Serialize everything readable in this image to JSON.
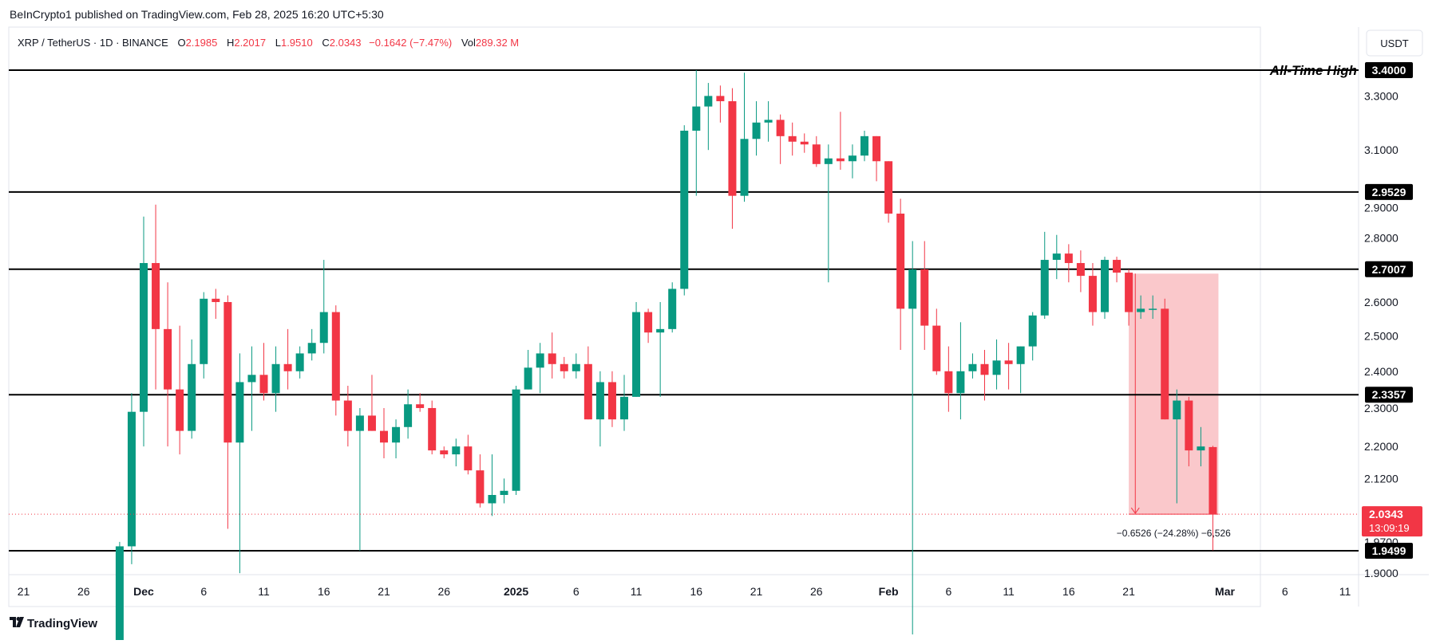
{
  "publisher": "BeInCrypto1 published on TradingView.com, Feb 28, 2025 16:20 UTC+5:30",
  "legend": {
    "symbol": "XRP / TetherUS · 1D · BINANCE",
    "open_label": "O",
    "open": "2.1985",
    "high_label": "H",
    "high": "2.2017",
    "low_label": "L",
    "low": "1.9510",
    "close_label": "C",
    "close": "2.0343",
    "change": "−0.1642 (−7.47%)",
    "vol_label": "Vol",
    "vol": "289.32 M"
  },
  "currency_button": "USDT",
  "ath_label": "All-Time High",
  "measure_label": "−0.6526 (−24.28%) −6,526",
  "price_tag": {
    "price": "2.0343",
    "countdown": "13:09:19"
  },
  "brand": "TradingView",
  "colors": {
    "up": "#089981",
    "down": "#f23645",
    "line": "#000000",
    "measure_fill": "#f7a3a9"
  },
  "chart_data": {
    "type": "candlestick",
    "y_ticks": [
      "1.9000",
      "1.9700",
      "2.0343",
      "2.1200",
      "2.2000",
      "2.3000",
      "2.4000",
      "2.5000",
      "2.6000",
      "2.8000",
      "2.9000",
      "3.1000",
      "3.3000"
    ],
    "x_ticks": [
      {
        "label": "21",
        "date": "2024-11-21"
      },
      {
        "label": "26",
        "date": "2024-11-26"
      },
      {
        "label": "Dec",
        "date": "2024-12-01",
        "bold": true
      },
      {
        "label": "6",
        "date": "2024-12-06"
      },
      {
        "label": "11",
        "date": "2024-12-11"
      },
      {
        "label": "16",
        "date": "2024-12-16"
      },
      {
        "label": "21",
        "date": "2024-12-21"
      },
      {
        "label": "26",
        "date": "2024-12-26"
      },
      {
        "label": "2025",
        "date": "2025-01-01",
        "bold": true
      },
      {
        "label": "6",
        "date": "2025-01-06"
      },
      {
        "label": "11",
        "date": "2025-01-11"
      },
      {
        "label": "16",
        "date": "2025-01-16"
      },
      {
        "label": "21",
        "date": "2025-01-21"
      },
      {
        "label": "26",
        "date": "2025-01-26"
      },
      {
        "label": "Feb",
        "date": "2025-02-01",
        "bold": true
      },
      {
        "label": "6",
        "date": "2025-02-06"
      },
      {
        "label": "11",
        "date": "2025-02-11"
      },
      {
        "label": "16",
        "date": "2025-02-16"
      },
      {
        "label": "21",
        "date": "2025-02-21"
      },
      {
        "label": "Mar",
        "date": "2025-03-01",
        "bold": true
      },
      {
        "label": "6",
        "date": "2025-03-06"
      },
      {
        "label": "11",
        "date": "2025-03-11"
      }
    ],
    "horizontal_levels": [
      {
        "value": 3.4,
        "label": "3.4000"
      },
      {
        "value": 2.9529,
        "label": "2.9529"
      },
      {
        "value": 2.7007,
        "label": "2.7007"
      },
      {
        "value": 2.3357,
        "label": "2.3357"
      },
      {
        "value": 1.9499,
        "label": "1.9499"
      }
    ],
    "measure": {
      "from_date": "2025-02-21",
      "to_date": "2025-02-28",
      "top": 2.6869,
      "bottom": 2.0343
    },
    "candles": [
      {
        "d": "2024-11-29",
        "o": 1.75,
        "h": 1.97,
        "l": 1.72,
        "c": 1.96
      },
      {
        "d": "2024-11-30",
        "o": 1.96,
        "h": 2.34,
        "l": 1.92,
        "c": 2.29
      },
      {
        "d": "2024-12-01",
        "o": 2.29,
        "h": 2.87,
        "l": 2.2,
        "c": 2.72
      },
      {
        "d": "2024-12-02",
        "o": 2.72,
        "h": 2.91,
        "l": 2.35,
        "c": 2.52
      },
      {
        "d": "2024-12-03",
        "o": 2.52,
        "h": 2.66,
        "l": 2.2,
        "c": 2.35
      },
      {
        "d": "2024-12-04",
        "o": 2.35,
        "h": 2.53,
        "l": 2.18,
        "c": 2.24
      },
      {
        "d": "2024-12-05",
        "o": 2.24,
        "h": 2.49,
        "l": 2.22,
        "c": 2.42
      },
      {
        "d": "2024-12-06",
        "o": 2.42,
        "h": 2.63,
        "l": 2.38,
        "c": 2.61
      },
      {
        "d": "2024-12-07",
        "o": 2.61,
        "h": 2.64,
        "l": 2.55,
        "c": 2.6
      },
      {
        "d": "2024-12-08",
        "o": 2.6,
        "h": 2.62,
        "l": 2.0,
        "c": 2.21
      },
      {
        "d": "2024-12-09",
        "o": 2.21,
        "h": 2.45,
        "l": 1.9,
        "c": 2.37
      },
      {
        "d": "2024-12-10",
        "o": 2.37,
        "h": 2.47,
        "l": 2.24,
        "c": 2.39
      },
      {
        "d": "2024-12-11",
        "o": 2.39,
        "h": 2.48,
        "l": 2.32,
        "c": 2.34
      },
      {
        "d": "2024-12-12",
        "o": 2.34,
        "h": 2.47,
        "l": 2.29,
        "c": 2.42
      },
      {
        "d": "2024-12-13",
        "o": 2.42,
        "h": 2.52,
        "l": 2.35,
        "c": 2.4
      },
      {
        "d": "2024-12-14",
        "o": 2.4,
        "h": 2.47,
        "l": 2.38,
        "c": 2.45
      },
      {
        "d": "2024-12-15",
        "o": 2.45,
        "h": 2.52,
        "l": 2.43,
        "c": 2.48
      },
      {
        "d": "2024-12-16",
        "o": 2.48,
        "h": 2.73,
        "l": 2.45,
        "c": 2.57
      },
      {
        "d": "2024-12-17",
        "o": 2.57,
        "h": 2.59,
        "l": 2.28,
        "c": 2.32
      },
      {
        "d": "2024-12-18",
        "o": 2.32,
        "h": 2.36,
        "l": 2.2,
        "c": 2.24
      },
      {
        "d": "2024-12-19",
        "o": 2.24,
        "h": 2.3,
        "l": 1.95,
        "c": 2.28
      },
      {
        "d": "2024-12-20",
        "o": 2.28,
        "h": 2.39,
        "l": 2.24,
        "c": 2.24
      },
      {
        "d": "2024-12-21",
        "o": 2.24,
        "h": 2.3,
        "l": 2.17,
        "c": 2.21
      },
      {
        "d": "2024-12-22",
        "o": 2.21,
        "h": 2.27,
        "l": 2.17,
        "c": 2.25
      },
      {
        "d": "2024-12-23",
        "o": 2.25,
        "h": 2.35,
        "l": 2.22,
        "c": 2.31
      },
      {
        "d": "2024-12-24",
        "o": 2.31,
        "h": 2.34,
        "l": 2.29,
        "c": 2.3
      },
      {
        "d": "2024-12-25",
        "o": 2.3,
        "h": 2.32,
        "l": 2.18,
        "c": 2.19
      },
      {
        "d": "2024-12-26",
        "o": 2.19,
        "h": 2.2,
        "l": 2.17,
        "c": 2.18
      },
      {
        "d": "2024-12-27",
        "o": 2.18,
        "h": 2.22,
        "l": 2.15,
        "c": 2.2
      },
      {
        "d": "2024-12-28",
        "o": 2.2,
        "h": 2.23,
        "l": 2.13,
        "c": 2.14
      },
      {
        "d": "2024-12-29",
        "o": 2.14,
        "h": 2.18,
        "l": 2.05,
        "c": 2.06
      },
      {
        "d": "2024-12-30",
        "o": 2.06,
        "h": 2.18,
        "l": 2.03,
        "c": 2.08
      },
      {
        "d": "2024-12-31",
        "o": 2.08,
        "h": 2.12,
        "l": 2.06,
        "c": 2.09
      },
      {
        "d": "2025-01-01",
        "o": 2.09,
        "h": 2.36,
        "l": 2.08,
        "c": 2.35
      },
      {
        "d": "2025-01-02",
        "o": 2.35,
        "h": 2.46,
        "l": 2.35,
        "c": 2.41
      },
      {
        "d": "2025-01-03",
        "o": 2.41,
        "h": 2.48,
        "l": 2.34,
        "c": 2.45
      },
      {
        "d": "2025-01-04",
        "o": 2.45,
        "h": 2.51,
        "l": 2.38,
        "c": 2.42
      },
      {
        "d": "2025-01-05",
        "o": 2.42,
        "h": 2.44,
        "l": 2.38,
        "c": 2.4
      },
      {
        "d": "2025-01-06",
        "o": 2.4,
        "h": 2.45,
        "l": 2.38,
        "c": 2.42
      },
      {
        "d": "2025-01-07",
        "o": 2.42,
        "h": 2.47,
        "l": 2.27,
        "c": 2.27
      },
      {
        "d": "2025-01-08",
        "o": 2.27,
        "h": 2.4,
        "l": 2.2,
        "c": 2.37
      },
      {
        "d": "2025-01-09",
        "o": 2.37,
        "h": 2.4,
        "l": 2.25,
        "c": 2.27
      },
      {
        "d": "2025-01-10",
        "o": 2.27,
        "h": 2.39,
        "l": 2.24,
        "c": 2.33
      },
      {
        "d": "2025-01-11",
        "o": 2.33,
        "h": 2.6,
        "l": 2.33,
        "c": 2.57
      },
      {
        "d": "2025-01-12",
        "o": 2.57,
        "h": 2.58,
        "l": 2.48,
        "c": 2.51
      },
      {
        "d": "2025-01-13",
        "o": 2.51,
        "h": 2.6,
        "l": 2.33,
        "c": 2.52
      },
      {
        "d": "2025-01-14",
        "o": 2.52,
        "h": 2.66,
        "l": 2.51,
        "c": 2.64
      },
      {
        "d": "2025-01-15",
        "o": 2.64,
        "h": 3.19,
        "l": 2.62,
        "c": 3.17
      },
      {
        "d": "2025-01-16",
        "o": 3.17,
        "h": 3.4,
        "l": 2.94,
        "c": 3.26
      },
      {
        "d": "2025-01-17",
        "o": 3.26,
        "h": 3.35,
        "l": 3.1,
        "c": 3.3
      },
      {
        "d": "2025-01-18",
        "o": 3.3,
        "h": 3.34,
        "l": 3.2,
        "c": 3.28
      },
      {
        "d": "2025-01-19",
        "o": 3.28,
        "h": 3.33,
        "l": 2.83,
        "c": 2.94
      },
      {
        "d": "2025-01-20",
        "o": 2.94,
        "h": 3.39,
        "l": 2.92,
        "c": 3.14
      },
      {
        "d": "2025-01-21",
        "o": 3.14,
        "h": 3.28,
        "l": 3.08,
        "c": 3.2
      },
      {
        "d": "2025-01-22",
        "o": 3.2,
        "h": 3.28,
        "l": 3.13,
        "c": 3.21
      },
      {
        "d": "2025-01-23",
        "o": 3.21,
        "h": 3.23,
        "l": 3.05,
        "c": 3.15
      },
      {
        "d": "2025-01-24",
        "o": 3.15,
        "h": 3.2,
        "l": 3.08,
        "c": 3.13
      },
      {
        "d": "2025-01-25",
        "o": 3.13,
        "h": 3.16,
        "l": 3.09,
        "c": 3.12
      },
      {
        "d": "2025-01-26",
        "o": 3.12,
        "h": 3.15,
        "l": 3.04,
        "c": 3.05
      },
      {
        "d": "2025-01-27",
        "o": 3.05,
        "h": 3.12,
        "l": 2.66,
        "c": 3.07
      },
      {
        "d": "2025-01-28",
        "o": 3.07,
        "h": 3.24,
        "l": 3.03,
        "c": 3.06
      },
      {
        "d": "2025-01-29",
        "o": 3.06,
        "h": 3.12,
        "l": 3.0,
        "c": 3.08
      },
      {
        "d": "2025-01-30",
        "o": 3.08,
        "h": 3.17,
        "l": 3.06,
        "c": 3.15
      },
      {
        "d": "2025-01-31",
        "o": 3.15,
        "h": 3.15,
        "l": 2.99,
        "c": 3.06
      },
      {
        "d": "2025-02-01",
        "o": 3.06,
        "h": 3.06,
        "l": 2.85,
        "c": 2.88
      },
      {
        "d": "2025-02-02",
        "o": 2.88,
        "h": 2.93,
        "l": 2.46,
        "c": 2.58
      },
      {
        "d": "2025-02-03",
        "o": 2.58,
        "h": 2.79,
        "l": 1.77,
        "c": 2.7
      },
      {
        "d": "2025-02-04",
        "o": 2.7,
        "h": 2.79,
        "l": 2.46,
        "c": 2.53
      },
      {
        "d": "2025-02-05",
        "o": 2.53,
        "h": 2.58,
        "l": 2.39,
        "c": 2.4
      },
      {
        "d": "2025-02-06",
        "o": 2.4,
        "h": 2.47,
        "l": 2.29,
        "c": 2.34
      },
      {
        "d": "2025-02-07",
        "o": 2.34,
        "h": 2.54,
        "l": 2.27,
        "c": 2.4
      },
      {
        "d": "2025-02-08",
        "o": 2.4,
        "h": 2.45,
        "l": 2.38,
        "c": 2.42
      },
      {
        "d": "2025-02-09",
        "o": 2.42,
        "h": 2.46,
        "l": 2.32,
        "c": 2.39
      },
      {
        "d": "2025-02-10",
        "o": 2.39,
        "h": 2.49,
        "l": 2.35,
        "c": 2.43
      },
      {
        "d": "2025-02-11",
        "o": 2.43,
        "h": 2.48,
        "l": 2.35,
        "c": 2.42
      },
      {
        "d": "2025-02-12",
        "o": 2.42,
        "h": 2.47,
        "l": 2.34,
        "c": 2.47
      },
      {
        "d": "2025-02-13",
        "o": 2.47,
        "h": 2.57,
        "l": 2.43,
        "c": 2.56
      },
      {
        "d": "2025-02-14",
        "o": 2.56,
        "h": 2.82,
        "l": 2.55,
        "c": 2.73
      },
      {
        "d": "2025-02-15",
        "o": 2.73,
        "h": 2.81,
        "l": 2.67,
        "c": 2.75
      },
      {
        "d": "2025-02-16",
        "o": 2.75,
        "h": 2.78,
        "l": 2.66,
        "c": 2.72
      },
      {
        "d": "2025-02-17",
        "o": 2.72,
        "h": 2.76,
        "l": 2.63,
        "c": 2.68
      },
      {
        "d": "2025-02-18",
        "o": 2.68,
        "h": 2.72,
        "l": 2.53,
        "c": 2.57
      },
      {
        "d": "2025-02-19",
        "o": 2.57,
        "h": 2.74,
        "l": 2.55,
        "c": 2.73
      },
      {
        "d": "2025-02-20",
        "o": 2.73,
        "h": 2.74,
        "l": 2.66,
        "c": 2.69
      },
      {
        "d": "2025-02-21",
        "o": 2.69,
        "h": 2.7,
        "l": 2.53,
        "c": 2.57
      },
      {
        "d": "2025-02-22",
        "o": 2.57,
        "h": 2.62,
        "l": 2.55,
        "c": 2.58
      },
      {
        "d": "2025-02-23",
        "o": 2.58,
        "h": 2.62,
        "l": 2.55,
        "c": 2.58
      },
      {
        "d": "2025-02-24",
        "o": 2.58,
        "h": 2.61,
        "l": 2.27,
        "c": 2.27
      },
      {
        "d": "2025-02-25",
        "o": 2.27,
        "h": 2.35,
        "l": 2.06,
        "c": 2.32
      },
      {
        "d": "2025-02-26",
        "o": 2.32,
        "h": 2.33,
        "l": 2.15,
        "c": 2.19
      },
      {
        "d": "2025-02-27",
        "o": 2.19,
        "h": 2.25,
        "l": 2.15,
        "c": 2.2
      },
      {
        "d": "2025-02-28",
        "o": 2.1985,
        "h": 2.2017,
        "l": 1.951,
        "c": 2.0343
      }
    ]
  }
}
